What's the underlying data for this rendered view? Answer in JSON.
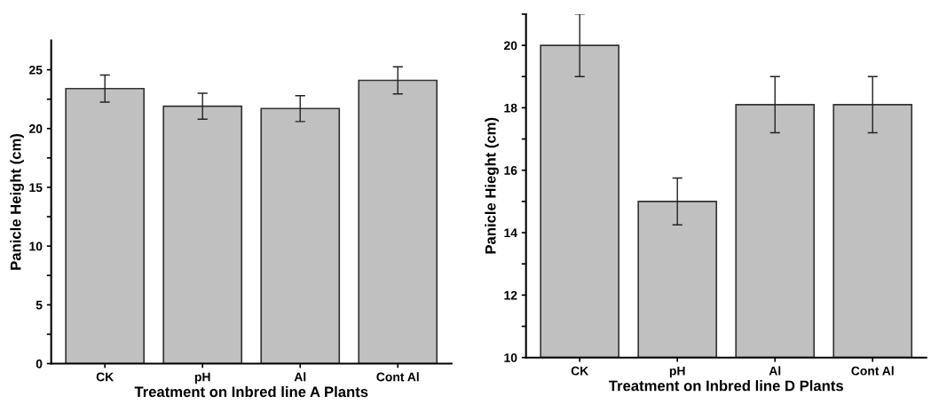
{
  "chart_data": [
    {
      "type": "bar",
      "xlabel": "Treatment on Inbred line A Plants",
      "ylabel": "Panicle Height (cm)",
      "categories": [
        "CK",
        "pH",
        "Al",
        "Cont Al"
      ],
      "values": [
        23.4,
        21.9,
        21.7,
        24.1
      ],
      "errors": [
        1.15,
        1.1,
        1.1,
        1.15
      ],
      "color": "#c0c0c0",
      "ylim": [
        0,
        27.5
      ],
      "yticks": [
        0,
        {
          "value": 2.5,
          "label": null
        },
        5,
        {
          "value": 7.5,
          "label": null
        },
        10,
        {
          "value": 12.5,
          "label": null
        },
        15,
        {
          "value": 17.5,
          "label": null
        },
        20,
        {
          "value": 22.5,
          "label": null
        },
        25
      ],
      "grid": false,
      "legend": false
    },
    {
      "type": "bar",
      "xlabel": "Treatment on Inbred line D Plants",
      "ylabel": "Panicle Hieght (cm)",
      "categories": [
        "CK",
        "pH",
        "Al",
        "Cont Al"
      ],
      "values": [
        20.0,
        15.0,
        18.1,
        18.1
      ],
      "errors": [
        1.0,
        0.75,
        0.9,
        0.9
      ],
      "color": "#c0c0c0",
      "ylim": [
        10,
        21
      ],
      "yticks": [
        10,
        {
          "value": 11,
          "label": null
        },
        12,
        {
          "value": 13,
          "label": null
        },
        14,
        {
          "value": 15,
          "label": null
        },
        16,
        {
          "value": 17,
          "label": null
        },
        18,
        {
          "value": 19,
          "label": null
        },
        20,
        {
          "value": 21,
          "label": null
        }
      ],
      "grid": false,
      "legend": false
    }
  ]
}
